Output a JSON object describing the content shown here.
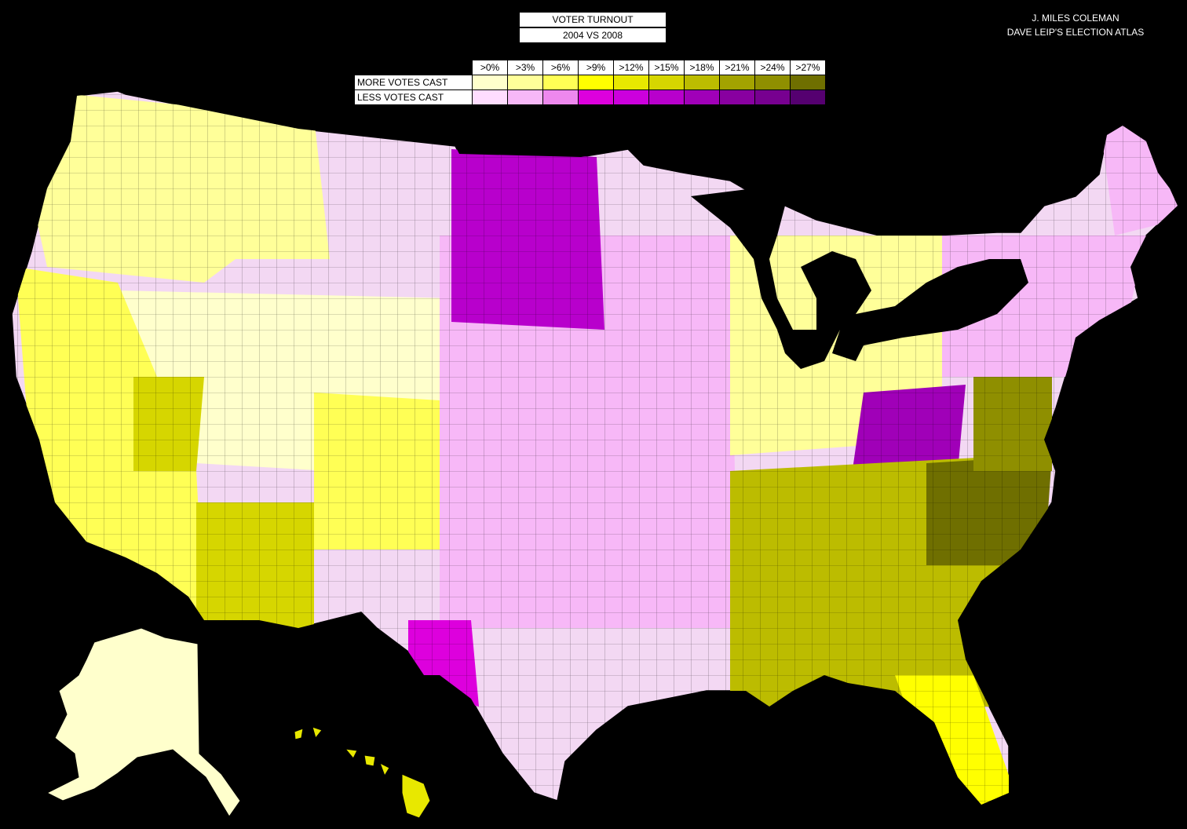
{
  "title": {
    "line1": "VOTER TURNOUT",
    "line2": "2004 VS 2008"
  },
  "credits": {
    "author": "J. MILES COLEMAN",
    "source": "DAVE LEIP'S ELECTION ATLAS"
  },
  "legend": {
    "thresholds": [
      ">0%",
      ">3%",
      ">6%",
      ">9%",
      ">12%",
      ">15%",
      ">18%",
      ">21%",
      ">24%",
      ">27%"
    ],
    "more": {
      "label": "MORE VOTES CAST",
      "colors": [
        "#ffffcc",
        "#ffff99",
        "#ffff55",
        "#ffff00",
        "#e8e800",
        "#d6d600",
        "#bcbc00",
        "#a3a300",
        "#8f8f00",
        "#6f6f00"
      ]
    },
    "less": {
      "label": "LESS VOTES CAST",
      "colors": [
        "#ffddff",
        "#f7b8f7",
        "#ee88ee",
        "#dd00dd",
        "#cc00dd",
        "#b800cc",
        "#a000b8",
        "#8800a0",
        "#770090",
        "#550070"
      ]
    }
  },
  "map": {
    "land_color": "#f3d8f3",
    "border_color": "#000000",
    "regions": [
      {
        "name": "alaska",
        "level": "more-0"
      },
      {
        "name": "hawaii",
        "level": "more-4"
      },
      {
        "name": "california",
        "level": "more-2"
      },
      {
        "name": "nevada-east",
        "level": "more-5"
      },
      {
        "name": "arizona-south",
        "level": "more-5"
      },
      {
        "name": "dakotas",
        "level": "less-5"
      },
      {
        "name": "appalachia",
        "level": "less-6"
      },
      {
        "name": "southeast",
        "level": "more-6"
      },
      {
        "name": "mid-atlantic",
        "level": "more-8"
      },
      {
        "name": "north-carolina",
        "level": "more-9"
      },
      {
        "name": "florida",
        "level": "more-3"
      },
      {
        "name": "texas-west",
        "level": "less-3"
      },
      {
        "name": "northeast",
        "level": "less-1"
      },
      {
        "name": "maine",
        "level": "less-1"
      },
      {
        "name": "plains",
        "level": "less-1"
      },
      {
        "name": "midwest",
        "level": "more-1"
      },
      {
        "name": "pacific-northwest",
        "level": "more-1"
      },
      {
        "name": "mountain-west",
        "level": "more-0"
      },
      {
        "name": "colorado-plateau",
        "level": "more-2"
      }
    ]
  }
}
